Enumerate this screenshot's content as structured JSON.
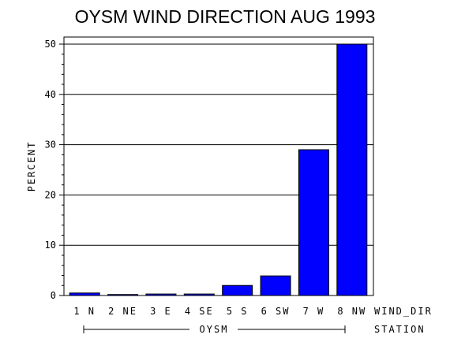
{
  "chart_data": {
    "type": "bar",
    "title": "OYSM WIND DIRECTION AUG 1993",
    "ylabel": "PERCENT",
    "xlabel": "WIND_DIR",
    "group_label": "STATION",
    "group_value": "OYSM",
    "categories": [
      "1 N",
      "2 NE",
      "3 E",
      "4 SE",
      "5 S",
      "6 SW",
      "7 W",
      "8 NW"
    ],
    "values": [
      0.5,
      0.2,
      0.3,
      0.3,
      2.0,
      3.9,
      29.0,
      50.0
    ],
    "ylim": [
      0,
      50
    ],
    "yticks": [
      0,
      10,
      20,
      30,
      40,
      50
    ],
    "ytick_labels": [
      "0",
      "10",
      "20",
      "30",
      "40",
      "50"
    ],
    "grid": "horizontal",
    "bar_color": "#0000ff"
  }
}
